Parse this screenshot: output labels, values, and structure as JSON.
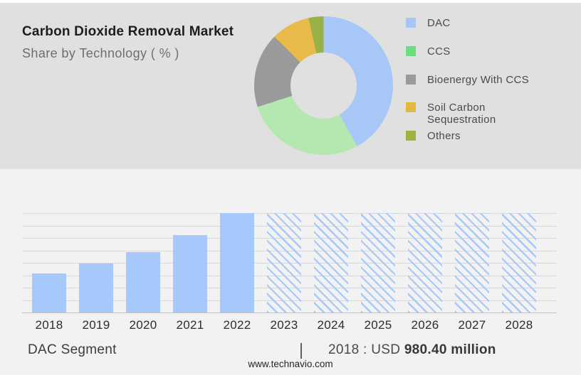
{
  "header": {
    "title": "Carbon Dioxide Removal Market",
    "subtitle": "Share by Technology ( % )"
  },
  "chart_data": [
    {
      "type": "pie",
      "subtype": "donut",
      "title": "Share by Technology ( % )",
      "legend_position": "right",
      "start_angle_deg": 0,
      "segments": [
        {
          "label": "DAC",
          "share_pct": 42,
          "color": "#a7c7f6",
          "legend_color": "#a7c8f7"
        },
        {
          "label": "CCS",
          "share_pct": 28,
          "color": "#b5e8b0",
          "legend_color": "#6ade81"
        },
        {
          "label": "Bioenergy With CCS",
          "share_pct": 17.5,
          "color": "#9a9a9a",
          "legend_color": "#9b9b9b"
        },
        {
          "label": "Soil Carbon Sequestration",
          "share_pct": 9,
          "color": "#e8ba49",
          "legend_color": "#e2b93e"
        },
        {
          "label": "Others",
          "share_pct": 3.5,
          "color": "#9ab14a",
          "legend_color": "#9cb43f"
        }
      ],
      "note": "shares estimated from arc angles; no numeric labels shown in image"
    },
    {
      "type": "bar",
      "categories": [
        "2018",
        "2019",
        "2020",
        "2021",
        "2022",
        "2023",
        "2024",
        "2025",
        "2026",
        "2027",
        "2028"
      ],
      "bar_color": "#a6c8fa",
      "grid": true,
      "gridline_count": 9,
      "bars": [
        {
          "year": "2018",
          "height_frac": 0.39,
          "style": "solid"
        },
        {
          "year": "2019",
          "height_frac": 0.49,
          "style": "solid"
        },
        {
          "year": "2020",
          "height_frac": 0.61,
          "style": "solid"
        },
        {
          "year": "2021",
          "height_frac": 0.78,
          "style": "solid"
        },
        {
          "year": "2022",
          "height_frac": 1.0,
          "style": "solid"
        },
        {
          "year": "2023",
          "height_frac": 1.0,
          "style": "hatched"
        },
        {
          "year": "2024",
          "height_frac": 1.0,
          "style": "hatched"
        },
        {
          "year": "2025",
          "height_frac": 1.0,
          "style": "hatched"
        },
        {
          "year": "2026",
          "height_frac": 1.0,
          "style": "hatched"
        },
        {
          "year": "2027",
          "height_frac": 1.0,
          "style": "hatched"
        },
        {
          "year": "2028",
          "height_frac": 1.0,
          "style": "hatched"
        }
      ],
      "labeled_point": {
        "year": "2018",
        "value_text": "USD 980.40 million"
      },
      "note": "hatched bars 2023-2028 are forecast placeholders drawn at full height; y-axis unlabeled"
    }
  ],
  "caption": {
    "segment_label": "DAC Segment",
    "separator": "|",
    "value_prefix": "2018 : USD ",
    "value_bold": "980.40 million"
  },
  "footer": {
    "website": "www.technavio.com"
  }
}
